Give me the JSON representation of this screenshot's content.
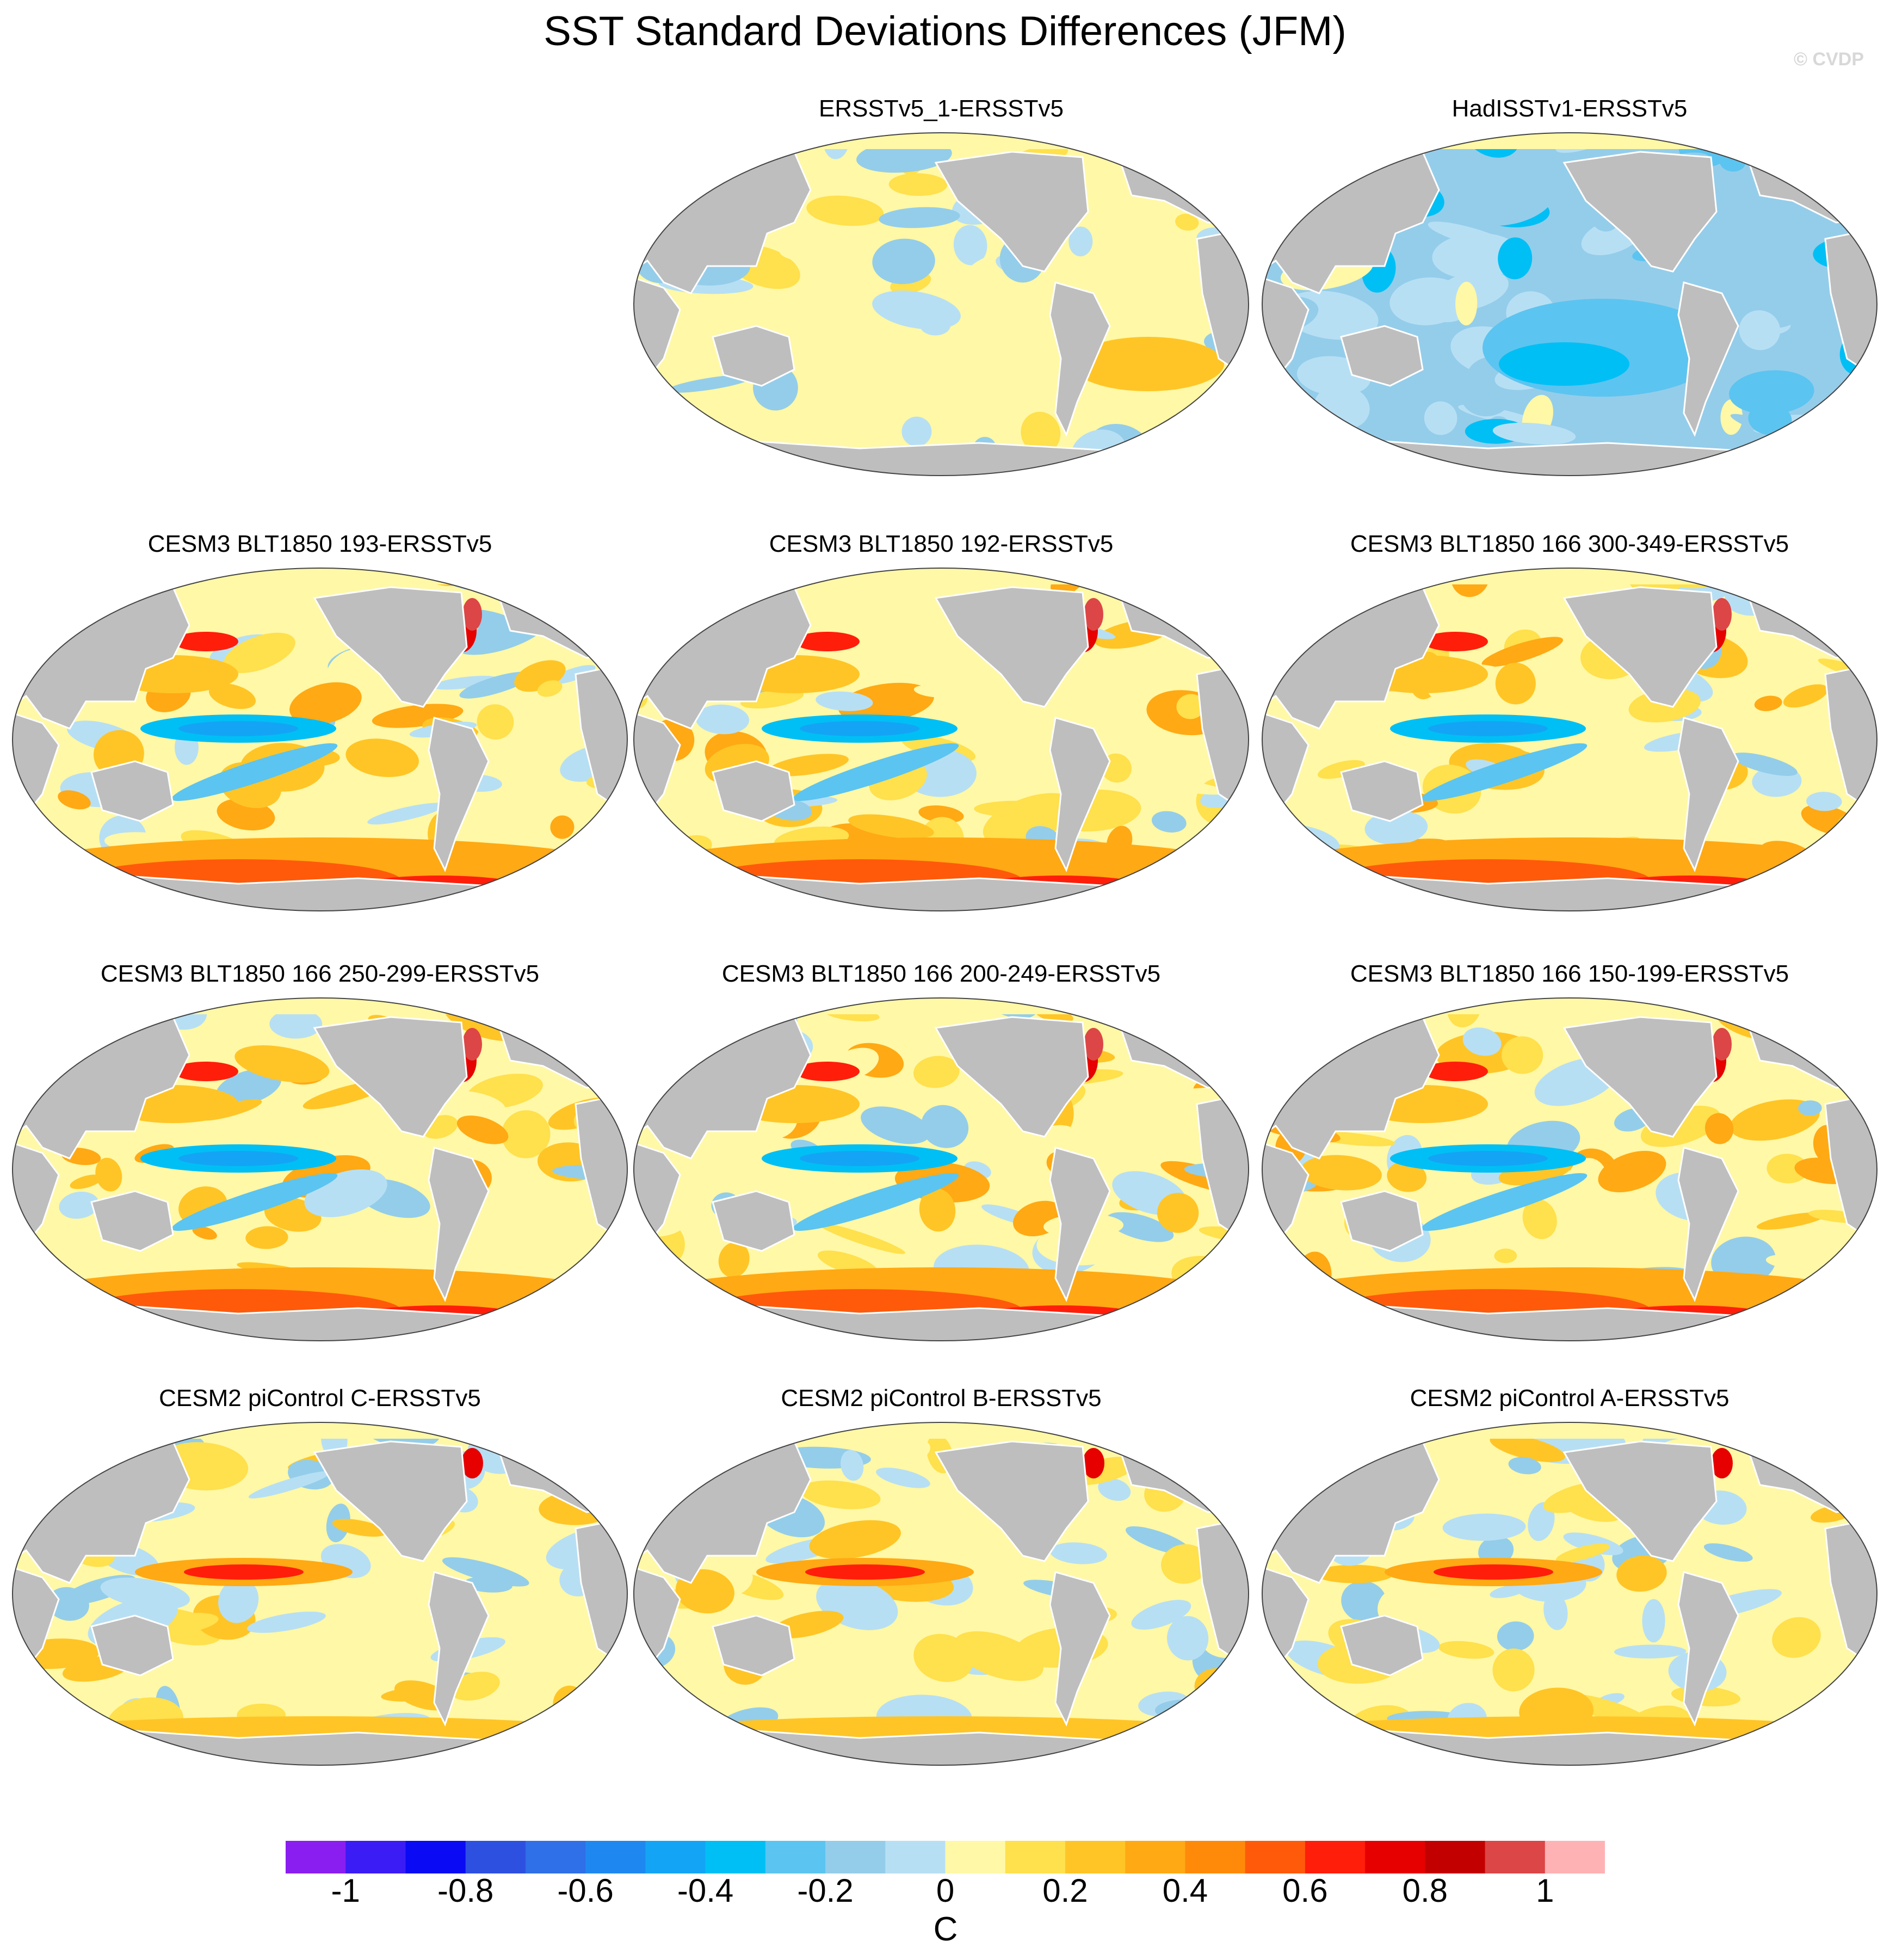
{
  "title": "SST Standard Deviations Differences (JFM)",
  "credit": "© CVDP",
  "panels": [
    {
      "label": "ERSSTv5_1-ERSSTv5",
      "style": "obs1"
    },
    {
      "label": "HadISSTv1-ERSSTv5",
      "style": "obs2"
    },
    {
      "label": "CESM3 BLT1850 193-ERSSTv5",
      "style": "blt"
    },
    {
      "label": "CESM3 BLT1850 192-ERSSTv5",
      "style": "blt"
    },
    {
      "label": "CESM3 BLT1850 166 300-349-ERSSTv5",
      "style": "blt"
    },
    {
      "label": "CESM3 BLT1850 166 250-299-ERSSTv5",
      "style": "blt"
    },
    {
      "label": "CESM3 BLT1850 166 200-249-ERSSTv5",
      "style": "blt"
    },
    {
      "label": "CESM3 BLT1850 166 150-199-ERSSTv5",
      "style": "blt"
    },
    {
      "label": "CESM2 piControl C-ERSSTv5",
      "style": "pic"
    },
    {
      "label": "CESM2 piControl B-ERSSTv5",
      "style": "pic"
    },
    {
      "label": "CESM2 piControl A-ERSSTv5",
      "style": "pic"
    }
  ],
  "colorbar": {
    "units": "C",
    "colors": [
      "#8a1ef0",
      "#3b1cf5",
      "#0a0af5",
      "#2e50e0",
      "#2f6fe8",
      "#1f88f0",
      "#14a4f5",
      "#00bff5",
      "#5cc4f0",
      "#94cdea",
      "#b7dff4",
      "#fff8a6",
      "#ffe04d",
      "#ffc526",
      "#ffa914",
      "#ff8a0a",
      "#ff5a0a",
      "#ff1e0a",
      "#e60000",
      "#c20000",
      "#dc4646",
      "#ffb2b4"
    ],
    "tick_labels": [
      "-1",
      "-0.8",
      "-0.6",
      "-0.4",
      "-0.2",
      "0",
      "0.2",
      "0.4",
      "0.6",
      "0.8",
      "1"
    ],
    "tick_values": [
      -1,
      -0.8,
      -0.6,
      -0.4,
      -0.2,
      0,
      0.2,
      0.4,
      0.6,
      0.8,
      1
    ]
  },
  "land_color": "#bebebe"
}
